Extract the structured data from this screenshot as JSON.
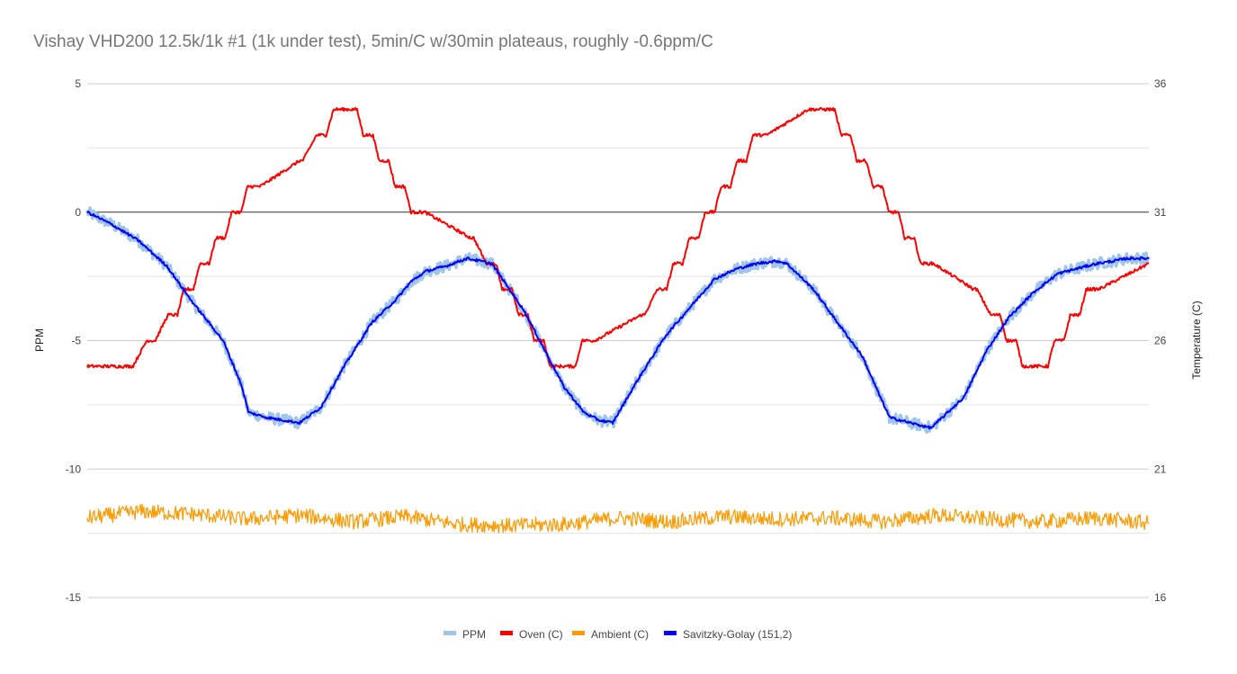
{
  "chart_data": {
    "type": "line",
    "title": "Vishay VHD200 12.5k/1k #1 (1k under test), 5min/C w/30min plateaus, roughly -0.6ppm/C",
    "xlabel": "",
    "ylabel": "PPM",
    "y2label": "Temperature (C)",
    "ylim": [
      -15,
      5
    ],
    "y2lim": [
      16,
      36
    ],
    "yticks": [
      5,
      0,
      -5,
      -10,
      -15
    ],
    "y2ticks": [
      36,
      31,
      26,
      21,
      16
    ],
    "xlim": [
      0,
      1
    ],
    "grid": true,
    "legend_position": "bottom",
    "series": [
      {
        "name": "PPM",
        "axis": "left",
        "color": "#9fc5e8",
        "noise": 0.22,
        "x": [
          0,
          0.024,
          0.048,
          0.075,
          0.099,
          0.128,
          0.145,
          0.152,
          0.17,
          0.2,
          0.22,
          0.242,
          0.268,
          0.291,
          0.305,
          0.319,
          0.338,
          0.351,
          0.358,
          0.381,
          0.391,
          0.411,
          0.43,
          0.449,
          0.468,
          0.482,
          0.495,
          0.519,
          0.545,
          0.57,
          0.591,
          0.612,
          0.631,
          0.65,
          0.659,
          0.684,
          0.705,
          0.73,
          0.747,
          0.756,
          0.766,
          0.775,
          0.795,
          0.826,
          0.847,
          0.868,
          0.892,
          0.914,
          0.932,
          0.951,
          0.967,
          0.98,
          1.0
        ],
        "y": [
          0,
          -0.5,
          -1.1,
          -2.1,
          -3.5,
          -5.0,
          -6.7,
          -7.8,
          -8.0,
          -8.2,
          -7.6,
          -6.0,
          -4.3,
          -3.4,
          -2.7,
          -2.3,
          -2.1,
          -1.9,
          -1.8,
          -2.0,
          -2.6,
          -3.8,
          -5.3,
          -6.8,
          -7.8,
          -8.1,
          -8.2,
          -6.5,
          -4.8,
          -3.6,
          -2.6,
          -2.2,
          -2.0,
          -1.9,
          -2.0,
          -3.0,
          -4.2,
          -5.6,
          -7.2,
          -8.0,
          -8.1,
          -8.2,
          -8.4,
          -7.2,
          -5.4,
          -4.1,
          -3.1,
          -2.4,
          -2.2,
          -2.0,
          -1.9,
          -1.8,
          -1.8
        ]
      },
      {
        "name": "Oven (C)",
        "axis": "right",
        "color": "#ff0000",
        "noise": 0.06,
        "x": [
          0,
          0.043,
          0.056,
          0.064,
          0.076,
          0.085,
          0.091,
          0.1,
          0.106,
          0.115,
          0.121,
          0.13,
          0.136,
          0.145,
          0.151,
          0.163,
          0.2,
          0.203,
          0.216,
          0.225,
          0.232,
          0.24,
          0.245,
          0.254,
          0.26,
          0.269,
          0.275,
          0.284,
          0.29,
          0.299,
          0.305,
          0.318,
          0.361,
          0.364,
          0.376,
          0.385,
          0.391,
          0.4,
          0.406,
          0.415,
          0.421,
          0.43,
          0.436,
          0.445,
          0.451,
          0.46,
          0.466,
          0.478,
          0.522,
          0.525,
          0.537,
          0.546,
          0.552,
          0.561,
          0.567,
          0.576,
          0.582,
          0.591,
          0.597,
          0.606,
          0.612,
          0.621,
          0.627,
          0.64,
          0.679,
          0.682,
          0.695,
          0.704,
          0.71,
          0.719,
          0.725,
          0.734,
          0.74,
          0.749,
          0.755,
          0.764,
          0.77,
          0.779,
          0.785,
          0.797,
          0.835,
          0.838,
          0.851,
          0.86,
          0.866,
          0.875,
          0.881,
          0.89,
          0.896,
          0.905,
          0.911,
          0.92,
          0.926,
          0.935,
          0.941,
          0.953,
          1.0
        ],
        "y": [
          25.0,
          25.0,
          26.0,
          26.0,
          27.0,
          27.0,
          28.0,
          28.0,
          29.0,
          29.0,
          30.0,
          30.0,
          31.0,
          31.0,
          32.0,
          32.0,
          33.0,
          33.0,
          34.0,
          34.0,
          35.0,
          35.0,
          35.0,
          35.0,
          34.0,
          34.0,
          33.0,
          33.0,
          32.0,
          32.0,
          31.0,
          31.0,
          30.0,
          30.0,
          29.0,
          29.0,
          28.0,
          28.0,
          27.0,
          27.0,
          26.0,
          26.0,
          25.0,
          25.0,
          25.0,
          25.0,
          26.0,
          26.0,
          27.0,
          27.0,
          28.0,
          28.0,
          29.0,
          29.0,
          30.0,
          30.0,
          31.0,
          31.0,
          32.0,
          32.0,
          33.0,
          33.0,
          34.0,
          34.0,
          35.0,
          35.0,
          35.0,
          35.0,
          34.0,
          34.0,
          33.0,
          33.0,
          32.0,
          32.0,
          31.0,
          31.0,
          30.0,
          30.0,
          29.0,
          29.0,
          28.0,
          28.0,
          27.0,
          27.0,
          26.0,
          26.0,
          25.0,
          25.0,
          25.0,
          25.0,
          26.0,
          26.0,
          27.0,
          27.0,
          28.0,
          28.0,
          29.0
        ]
      },
      {
        "name": "Ambient (C)",
        "axis": "right",
        "color": "#ff9900",
        "noise": 0.3,
        "x": [
          0,
          0.05,
          0.1,
          0.15,
          0.2,
          0.25,
          0.3,
          0.35,
          0.4,
          0.45,
          0.5,
          0.55,
          0.6,
          0.65,
          0.7,
          0.75,
          0.8,
          0.85,
          0.9,
          0.95,
          1.0
        ],
        "y": [
          19.1,
          19.35,
          19.25,
          19.05,
          19.2,
          18.95,
          19.15,
          18.85,
          18.8,
          18.85,
          19.1,
          18.95,
          19.15,
          19.05,
          19.1,
          18.95,
          19.2,
          19.05,
          18.95,
          19.1,
          18.9
        ]
      },
      {
        "name": "Savitzky-Golay (151,2)",
        "axis": "left",
        "color": "#0000ff",
        "noise": 0.05,
        "x": [
          0,
          0.024,
          0.048,
          0.075,
          0.099,
          0.128,
          0.145,
          0.152,
          0.17,
          0.2,
          0.22,
          0.242,
          0.268,
          0.291,
          0.305,
          0.319,
          0.338,
          0.351,
          0.358,
          0.381,
          0.391,
          0.411,
          0.43,
          0.449,
          0.468,
          0.482,
          0.495,
          0.519,
          0.545,
          0.57,
          0.591,
          0.612,
          0.631,
          0.65,
          0.659,
          0.684,
          0.705,
          0.73,
          0.747,
          0.756,
          0.766,
          0.775,
          0.795,
          0.826,
          0.847,
          0.868,
          0.892,
          0.914,
          0.932,
          0.951,
          0.967,
          0.98,
          1.0
        ],
        "y": [
          0,
          -0.5,
          -1.1,
          -2.1,
          -3.5,
          -5.0,
          -6.7,
          -7.8,
          -8.0,
          -8.2,
          -7.6,
          -6.0,
          -4.3,
          -3.4,
          -2.7,
          -2.3,
          -2.1,
          -1.9,
          -1.8,
          -2.0,
          -2.6,
          -3.8,
          -5.3,
          -6.8,
          -7.8,
          -8.1,
          -8.2,
          -6.5,
          -4.8,
          -3.6,
          -2.6,
          -2.2,
          -2.0,
          -1.9,
          -2.0,
          -3.0,
          -4.2,
          -5.6,
          -7.2,
          -8.0,
          -8.1,
          -8.2,
          -8.4,
          -7.2,
          -5.4,
          -4.1,
          -3.1,
          -2.4,
          -2.2,
          -2.0,
          -1.9,
          -1.8,
          -1.8
        ]
      }
    ]
  }
}
